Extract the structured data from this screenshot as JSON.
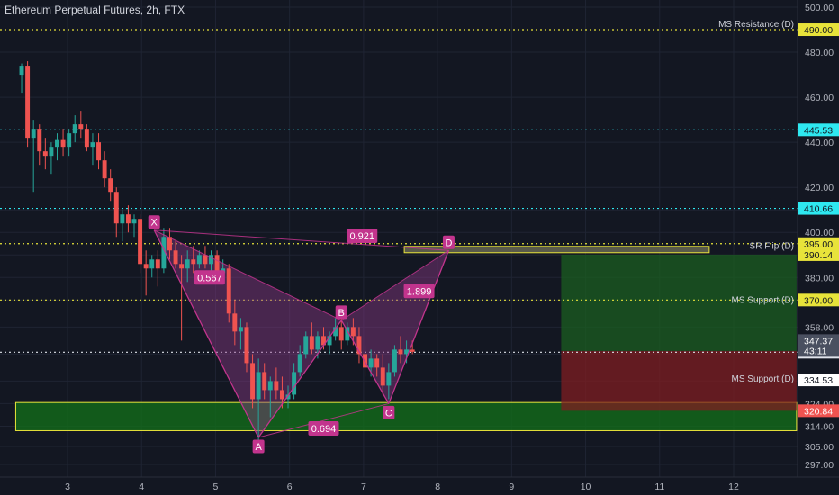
{
  "header": {
    "title": "Ethereum Perpetual Futures, 2h, FTX"
  },
  "colors": {
    "background": "#131722",
    "bull": "#26a69a",
    "bear": "#ef5350",
    "pattern": "#c2348d",
    "pattern_fill": "#8a3a86",
    "yellow_level": "#e8e33a",
    "cyan_level": "#2ee8f0",
    "target_zone": "#1b5e20",
    "stop_zone": "#7f1d22",
    "support_zone": "#136b1a"
  },
  "chart_data": {
    "type": "candlestick",
    "title": "Ethereum Perpetual Futures, 2h, FTX",
    "xlim": [
      2.3,
      12.85
    ],
    "ylim": [
      291,
      502
    ],
    "x_ticks": [
      "3",
      "4",
      "5",
      "6",
      "7",
      "8",
      "9",
      "10",
      "11",
      "12"
    ],
    "y_ticks": [
      297,
      305,
      314,
      324,
      334,
      346,
      358,
      370,
      380,
      390,
      400,
      410,
      420,
      440,
      460,
      480,
      500
    ],
    "y_tick_labels": [
      "297.00",
      "305.00",
      "314.00",
      "324.00",
      "",
      "",
      "358.00",
      "",
      "380.00",
      "",
      "400.00",
      "",
      "420.00",
      "440.00",
      "460.00",
      "480.00",
      "500.00"
    ],
    "candles": [
      {
        "x": 2.38,
        "o": 470,
        "h": 475,
        "l": 462,
        "c": 474
      },
      {
        "x": 2.46,
        "o": 474,
        "h": 476,
        "l": 438,
        "c": 442
      },
      {
        "x": 2.54,
        "o": 442,
        "h": 450,
        "l": 418,
        "c": 446
      },
      {
        "x": 2.62,
        "o": 446,
        "h": 448,
        "l": 430,
        "c": 436
      },
      {
        "x": 2.7,
        "o": 436,
        "h": 442,
        "l": 428,
        "c": 434
      },
      {
        "x": 2.78,
        "o": 434,
        "h": 440,
        "l": 426,
        "c": 438
      },
      {
        "x": 2.86,
        "o": 438,
        "h": 444,
        "l": 432,
        "c": 441
      },
      {
        "x": 2.94,
        "o": 441,
        "h": 446,
        "l": 434,
        "c": 438
      },
      {
        "x": 3.02,
        "o": 438,
        "h": 446,
        "l": 434,
        "c": 444
      },
      {
        "x": 3.1,
        "o": 444,
        "h": 452,
        "l": 440,
        "c": 448
      },
      {
        "x": 3.18,
        "o": 448,
        "h": 454,
        "l": 442,
        "c": 446
      },
      {
        "x": 3.26,
        "o": 446,
        "h": 448,
        "l": 436,
        "c": 438
      },
      {
        "x": 3.34,
        "o": 438,
        "h": 444,
        "l": 430,
        "c": 440
      },
      {
        "x": 3.42,
        "o": 440,
        "h": 444,
        "l": 428,
        "c": 432
      },
      {
        "x": 3.5,
        "o": 432,
        "h": 436,
        "l": 420,
        "c": 424
      },
      {
        "x": 3.58,
        "o": 424,
        "h": 428,
        "l": 414,
        "c": 418
      },
      {
        "x": 3.66,
        "o": 418,
        "h": 420,
        "l": 398,
        "c": 404
      },
      {
        "x": 3.74,
        "o": 404,
        "h": 410,
        "l": 396,
        "c": 408
      },
      {
        "x": 3.82,
        "o": 408,
        "h": 412,
        "l": 400,
        "c": 404
      },
      {
        "x": 3.9,
        "o": 404,
        "h": 408,
        "l": 398,
        "c": 406
      },
      {
        "x": 3.98,
        "o": 406,
        "h": 408,
        "l": 382,
        "c": 386
      },
      {
        "x": 4.06,
        "o": 386,
        "h": 392,
        "l": 372,
        "c": 384
      },
      {
        "x": 4.14,
        "o": 384,
        "h": 390,
        "l": 380,
        "c": 388
      },
      {
        "x": 4.22,
        "o": 388,
        "h": 392,
        "l": 376,
        "c": 384
      },
      {
        "x": 4.3,
        "o": 384,
        "h": 402,
        "l": 382,
        "c": 398
      },
      {
        "x": 4.38,
        "o": 398,
        "h": 402,
        "l": 388,
        "c": 392
      },
      {
        "x": 4.46,
        "o": 392,
        "h": 396,
        "l": 384,
        "c": 386
      },
      {
        "x": 4.54,
        "o": 386,
        "h": 390,
        "l": 352,
        "c": 384
      },
      {
        "x": 4.62,
        "o": 384,
        "h": 392,
        "l": 378,
        "c": 388
      },
      {
        "x": 4.7,
        "o": 388,
        "h": 394,
        "l": 382,
        "c": 386
      },
      {
        "x": 4.78,
        "o": 386,
        "h": 392,
        "l": 384,
        "c": 390
      },
      {
        "x": 4.86,
        "o": 390,
        "h": 394,
        "l": 384,
        "c": 386
      },
      {
        "x": 4.94,
        "o": 386,
        "h": 392,
        "l": 382,
        "c": 390
      },
      {
        "x": 5.02,
        "o": 390,
        "h": 392,
        "l": 378,
        "c": 382
      },
      {
        "x": 5.1,
        "o": 382,
        "h": 388,
        "l": 378,
        "c": 384
      },
      {
        "x": 5.18,
        "o": 384,
        "h": 386,
        "l": 360,
        "c": 364
      },
      {
        "x": 5.26,
        "o": 364,
        "h": 370,
        "l": 350,
        "c": 356
      },
      {
        "x": 5.34,
        "o": 356,
        "h": 362,
        "l": 348,
        "c": 358
      },
      {
        "x": 5.42,
        "o": 358,
        "h": 360,
        "l": 338,
        "c": 342
      },
      {
        "x": 5.5,
        "o": 342,
        "h": 346,
        "l": 322,
        "c": 326
      },
      {
        "x": 5.58,
        "o": 326,
        "h": 344,
        "l": 308,
        "c": 338
      },
      {
        "x": 5.66,
        "o": 338,
        "h": 342,
        "l": 326,
        "c": 330
      },
      {
        "x": 5.74,
        "o": 330,
        "h": 336,
        "l": 318,
        "c": 334
      },
      {
        "x": 5.82,
        "o": 334,
        "h": 340,
        "l": 326,
        "c": 330
      },
      {
        "x": 5.9,
        "o": 330,
        "h": 336,
        "l": 322,
        "c": 326
      },
      {
        "x": 5.98,
        "o": 326,
        "h": 332,
        "l": 322,
        "c": 328
      },
      {
        "x": 6.06,
        "o": 328,
        "h": 342,
        "l": 326,
        "c": 338
      },
      {
        "x": 6.14,
        "o": 338,
        "h": 350,
        "l": 336,
        "c": 346
      },
      {
        "x": 6.22,
        "o": 346,
        "h": 356,
        "l": 344,
        "c": 354
      },
      {
        "x": 6.3,
        "o": 354,
        "h": 360,
        "l": 346,
        "c": 348
      },
      {
        "x": 6.38,
        "o": 348,
        "h": 356,
        "l": 344,
        "c": 354
      },
      {
        "x": 6.46,
        "o": 354,
        "h": 358,
        "l": 348,
        "c": 350
      },
      {
        "x": 6.54,
        "o": 350,
        "h": 356,
        "l": 346,
        "c": 354
      },
      {
        "x": 6.62,
        "o": 354,
        "h": 362,
        "l": 352,
        "c": 358
      },
      {
        "x": 6.7,
        "o": 358,
        "h": 362,
        "l": 348,
        "c": 352
      },
      {
        "x": 6.78,
        "o": 352,
        "h": 360,
        "l": 350,
        "c": 358
      },
      {
        "x": 6.86,
        "o": 358,
        "h": 362,
        "l": 350,
        "c": 354
      },
      {
        "x": 6.94,
        "o": 354,
        "h": 358,
        "l": 342,
        "c": 346
      },
      {
        "x": 7.02,
        "o": 346,
        "h": 350,
        "l": 336,
        "c": 340
      },
      {
        "x": 7.1,
        "o": 340,
        "h": 348,
        "l": 336,
        "c": 344
      },
      {
        "x": 7.18,
        "o": 344,
        "h": 346,
        "l": 336,
        "c": 340
      },
      {
        "x": 7.26,
        "o": 340,
        "h": 346,
        "l": 328,
        "c": 332
      },
      {
        "x": 7.34,
        "o": 332,
        "h": 342,
        "l": 326,
        "c": 338
      },
      {
        "x": 7.42,
        "o": 338,
        "h": 350,
        "l": 336,
        "c": 348
      },
      {
        "x": 7.5,
        "o": 348,
        "h": 354,
        "l": 342,
        "c": 346
      },
      {
        "x": 7.58,
        "o": 346,
        "h": 352,
        "l": 342,
        "c": 348
      },
      {
        "x": 7.66,
        "o": 348,
        "h": 352,
        "l": 346,
        "c": 347
      }
    ],
    "levels": [
      {
        "price": 490.0,
        "label": "MS Resistance (D)",
        "tag": "490.00",
        "color": "#e8e33a",
        "style": "dotted"
      },
      {
        "price": 445.53,
        "label": "",
        "tag": "445.53",
        "color": "#2ee8f0",
        "style": "dotted"
      },
      {
        "price": 410.66,
        "label": "",
        "tag": "410.66",
        "color": "#2ee8f0",
        "style": "dotted"
      },
      {
        "price": 395.0,
        "label": "",
        "tag": "395.00",
        "color": "#e8e33a",
        "style": "dotted"
      },
      {
        "price": 370.0,
        "label": "",
        "tag": "370.00",
        "color": "#e8e33a",
        "style": "dotted"
      },
      {
        "price": 346.82,
        "label": "",
        "tag": "346.82",
        "color": "#e0e3eb",
        "style": "dotted"
      }
    ],
    "level_labels": [
      {
        "price": 392,
        "text": "SR Flip (D)"
      },
      {
        "price": 368,
        "text": "MS Support (D)"
      },
      {
        "price": 333,
        "text": "MS Support (D)"
      }
    ],
    "price_tags": [
      {
        "price": 390.14,
        "text": "390.14",
        "bg": "#e8e33a",
        "fg": "#131722"
      },
      {
        "price": 352.0,
        "text": "347.37",
        "bg": "#4a5060",
        "fg": "#ffffff"
      },
      {
        "price": 347.6,
        "text": "43:11",
        "bg": "#4a5060",
        "fg": "#ffffff"
      },
      {
        "price": 334.53,
        "text": "334.53",
        "bg": "#ffffff",
        "fg": "#131722"
      },
      {
        "price": 320.84,
        "text": "320.84",
        "bg": "#ef5350",
        "fg": "#ffffff"
      }
    ],
    "harmonic_pattern": {
      "points": [
        {
          "name": "X",
          "x": 4.17,
          "y": 401
        },
        {
          "name": "A",
          "x": 5.58,
          "y": 309
        },
        {
          "name": "B",
          "x": 6.7,
          "y": 361
        },
        {
          "name": "C",
          "x": 7.34,
          "y": 324
        },
        {
          "name": "D",
          "x": 8.15,
          "y": 392
        }
      ],
      "ratios": [
        {
          "text": "0.921",
          "x": 6.98,
          "y": 398.5
        },
        {
          "text": "0.567",
          "x": 4.92,
          "y": 380
        },
        {
          "text": "0.694",
          "x": 6.46,
          "y": 313
        },
        {
          "text": "1.899",
          "x": 7.75,
          "y": 374
        }
      ]
    },
    "zones": [
      {
        "type": "sr_box",
        "x0": 7.55,
        "x1": 11.67,
        "y0": 391.0,
        "y1": 393.8
      },
      {
        "type": "support",
        "x0": 2.3,
        "x1": 12.85,
        "y0": 312,
        "y1": 324.5
      },
      {
        "type": "target",
        "x0": 9.67,
        "x1": 12.85,
        "y0": 347.37,
        "y1": 390.14
      },
      {
        "type": "stop",
        "x0": 9.67,
        "x1": 12.85,
        "y0": 320.84,
        "y1": 347.37
      }
    ]
  }
}
